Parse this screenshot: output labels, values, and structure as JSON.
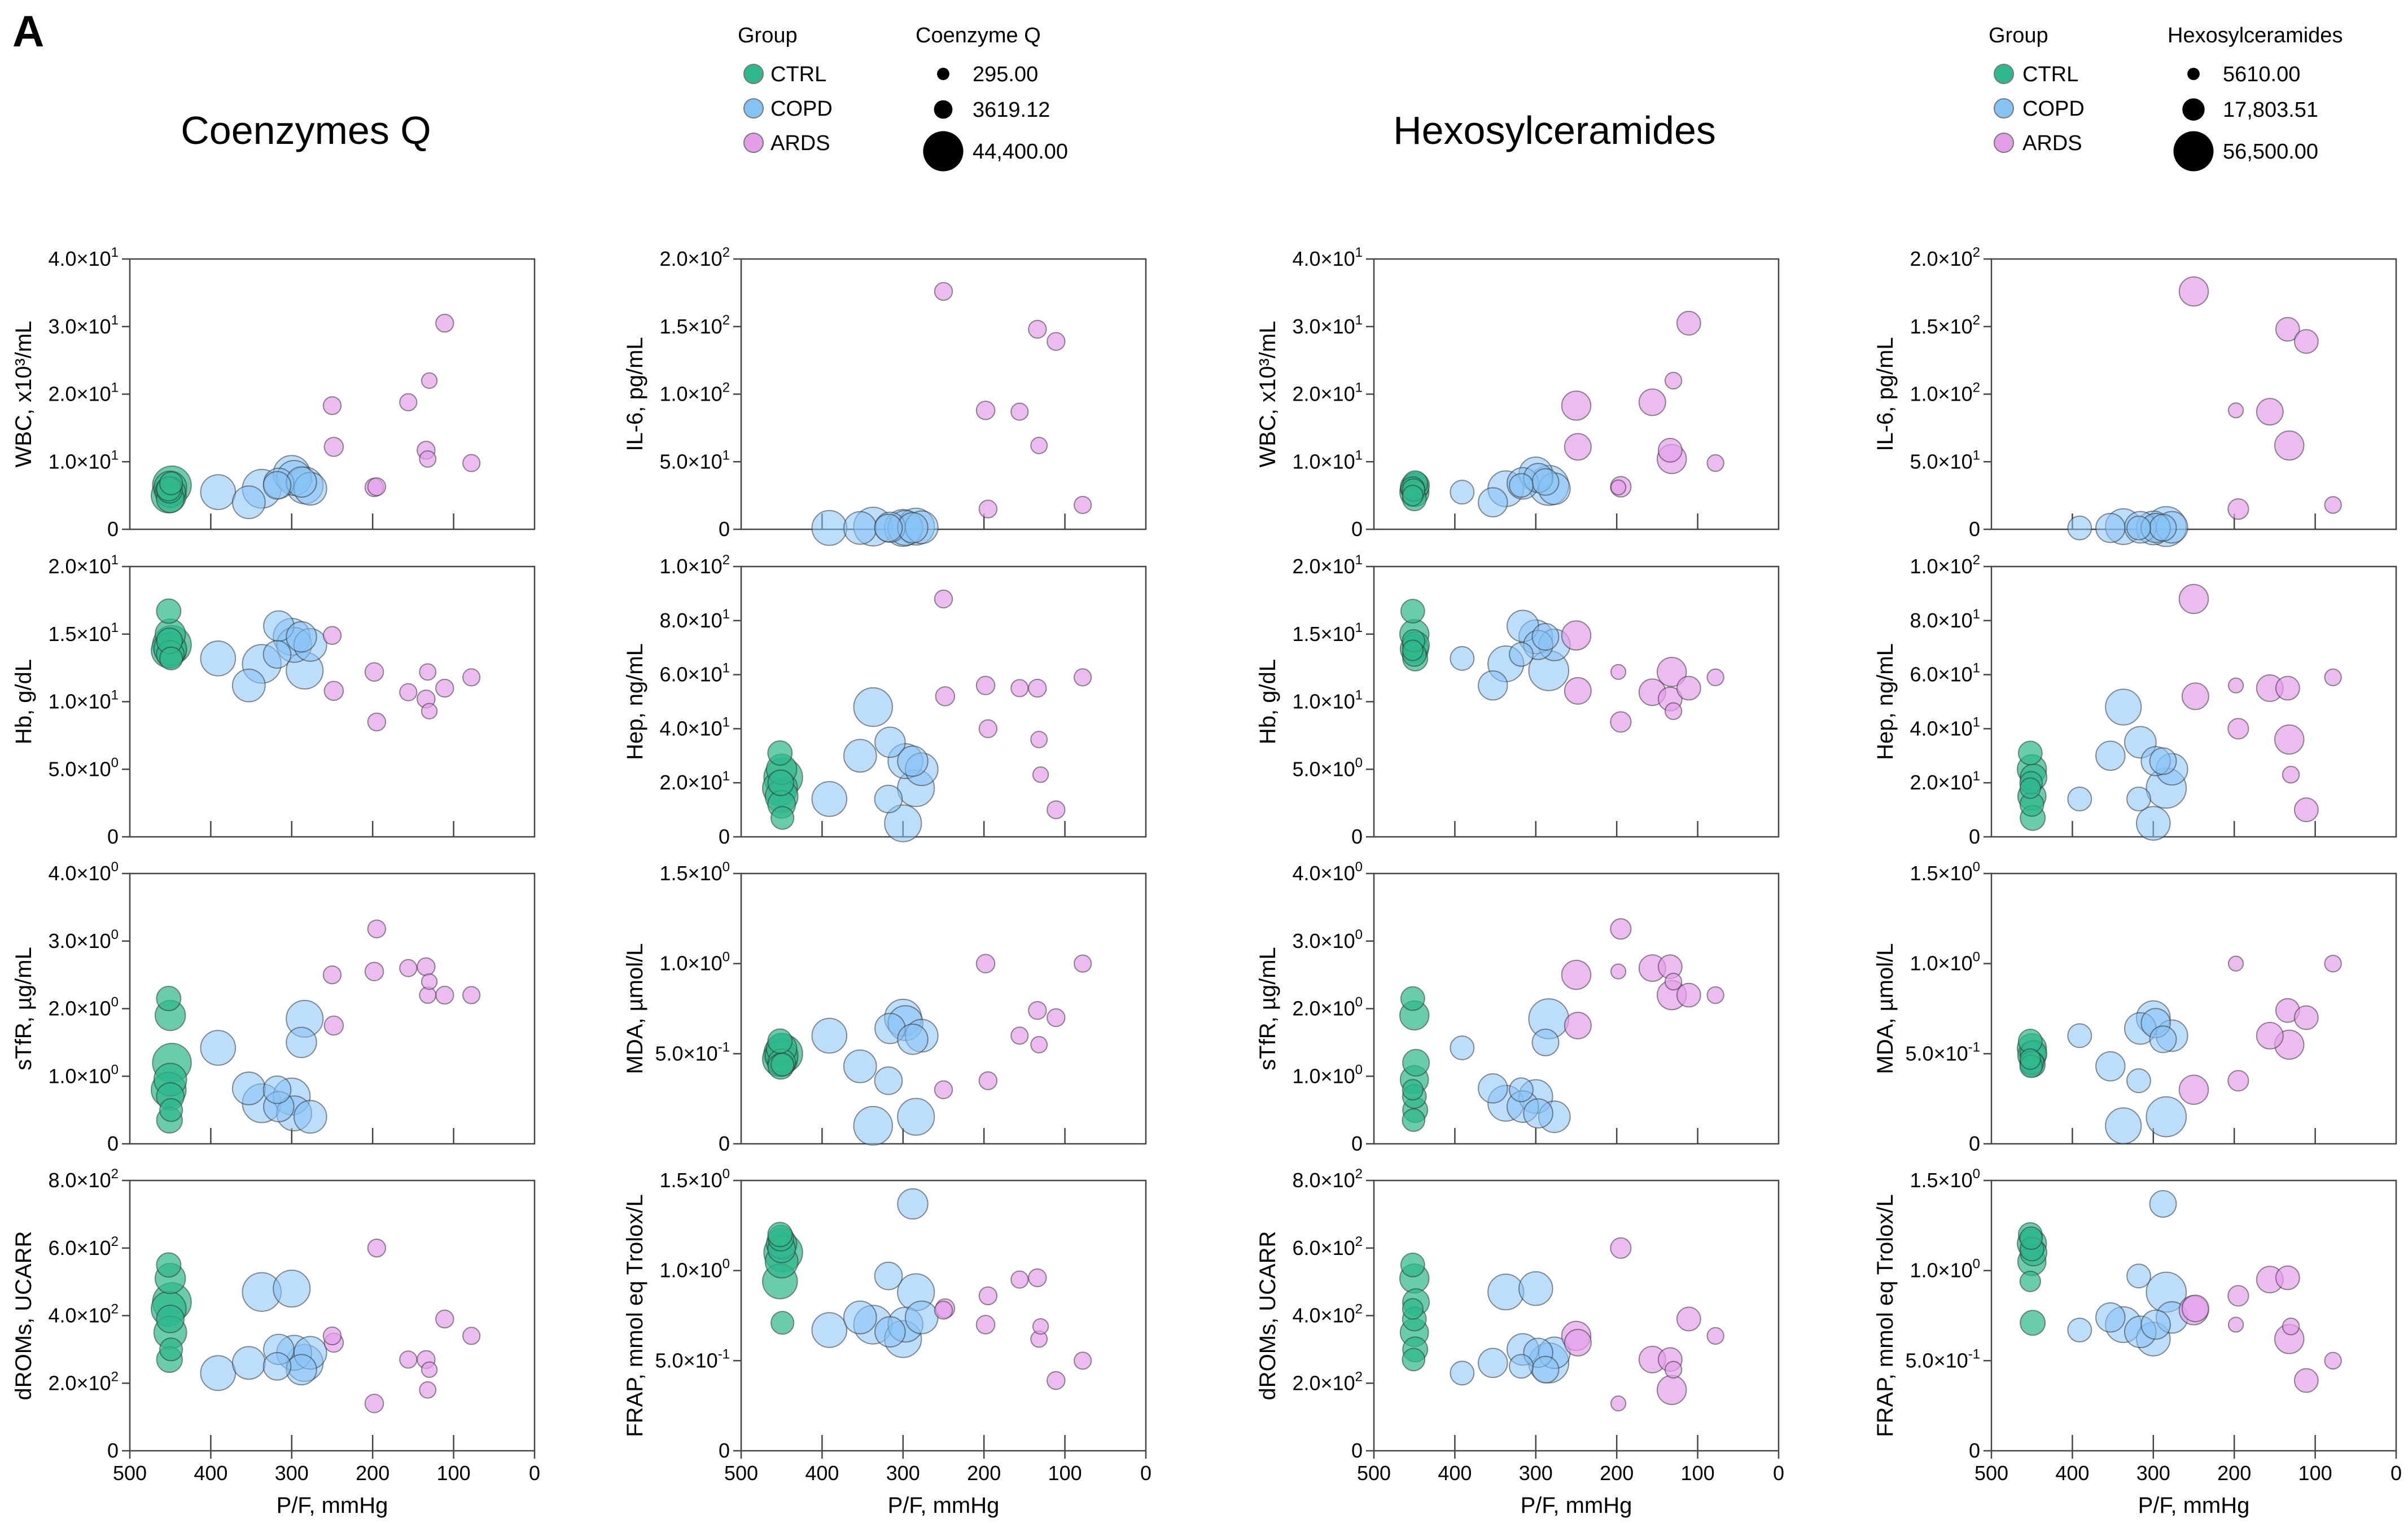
{
  "panel_label": "A",
  "titles": {
    "coq": "Coenzymes Q",
    "hex": "Hexosylceramides"
  },
  "legends": {
    "group_title": "Group",
    "groups": [
      {
        "key": "CTRL",
        "label": "CTRL",
        "color": "#2fb88e"
      },
      {
        "key": "COPD",
        "label": "COPD",
        "color": "#86c3f5"
      },
      {
        "key": "ARDS",
        "label": "ARDS",
        "color": "#e49ee9"
      }
    ],
    "coq": {
      "title": "Coenzyme Q",
      "values": [
        295.0,
        3619.12,
        44400.0
      ],
      "labels": [
        "295.00",
        "3619.12",
        "44,400.00"
      ]
    },
    "hex": {
      "title": "Hexosylceramides",
      "values": [
        5610.0,
        17803.51,
        56500.0
      ],
      "labels": [
        "5610.00",
        "17,803.51",
        "56,500.00"
      ]
    }
  },
  "chart_data": {
    "type": "scatter",
    "subtype": "bubble",
    "xlabel": "P/F, mmHg",
    "xlim": [
      500,
      0
    ],
    "xticks": [
      500,
      400,
      300,
      200,
      100,
      0
    ],
    "grid": false,
    "variables": {
      "wbc": {
        "ylabel": "WBC, x10³/mL",
        "ylim": [
          0,
          40
        ],
        "ticks": [
          [
            0,
            "0",
            ""
          ],
          [
            10,
            "1.0×10",
            "1"
          ],
          [
            20,
            "2.0×10",
            "1"
          ],
          [
            30,
            "3.0×10",
            "1"
          ],
          [
            40,
            "4.0×10",
            "1"
          ]
        ]
      },
      "il6": {
        "ylabel": "IL-6, pg/mL",
        "ylim": [
          0,
          200
        ],
        "ticks": [
          [
            0,
            "0",
            ""
          ],
          [
            50,
            "5.0×10",
            "1"
          ],
          [
            100,
            "1.0×10",
            "2"
          ],
          [
            150,
            "1.5×10",
            "2"
          ],
          [
            200,
            "2.0×10",
            "2"
          ]
        ]
      },
      "hb": {
        "ylabel": "Hb, g/dL",
        "ylim": [
          0,
          20
        ],
        "ticks": [
          [
            0,
            "0",
            ""
          ],
          [
            5,
            "5.0×10",
            "0"
          ],
          [
            10,
            "1.0×10",
            "1"
          ],
          [
            15,
            "1.5×10",
            "1"
          ],
          [
            20,
            "2.0×10",
            "1"
          ]
        ]
      },
      "hep": {
        "ylabel": "Hep, ng/mL",
        "ylim": [
          0,
          100
        ],
        "ticks": [
          [
            0,
            "0",
            ""
          ],
          [
            20,
            "2.0×10",
            "1"
          ],
          [
            40,
            "4.0×10",
            "1"
          ],
          [
            60,
            "6.0×10",
            "1"
          ],
          [
            80,
            "8.0×10",
            "1"
          ],
          [
            100,
            "1.0×10",
            "2"
          ]
        ]
      },
      "stfr": {
        "ylabel": "sTfR, µg/mL",
        "ylim": [
          0,
          4
        ],
        "ticks": [
          [
            0,
            "0",
            ""
          ],
          [
            1,
            "1.0×10",
            "0"
          ],
          [
            2,
            "2.0×10",
            "0"
          ],
          [
            3,
            "3.0×10",
            "0"
          ],
          [
            4,
            "4.0×10",
            "0"
          ]
        ]
      },
      "mda": {
        "ylabel": "MDA, µmol/L",
        "ylim": [
          0,
          1.5
        ],
        "ticks": [
          [
            0,
            "0",
            ""
          ],
          [
            0.5,
            "5.0×10",
            "-1"
          ],
          [
            1.0,
            "1.0×10",
            "0"
          ],
          [
            1.5,
            "1.5×10",
            "0"
          ]
        ]
      },
      "droms": {
        "ylabel": "dROMs, UCARR",
        "ylim": [
          0,
          800
        ],
        "ticks": [
          [
            0,
            "0",
            ""
          ],
          [
            200,
            "2.0×10",
            "2"
          ],
          [
            400,
            "4.0×10",
            "2"
          ],
          [
            600,
            "6.0×10",
            "2"
          ],
          [
            800,
            "8.0×10",
            "2"
          ]
        ]
      },
      "frap": {
        "ylabel": "FRAP, mmol eq Trolox/L",
        "ylim": [
          0,
          1.5
        ],
        "ticks": [
          [
            0,
            "0",
            ""
          ],
          [
            0.5,
            "5.0×10",
            "-1"
          ],
          [
            1.0,
            "1.0×10",
            "0"
          ],
          [
            1.5,
            "1.5×10",
            "0"
          ]
        ]
      }
    },
    "patients": [
      {
        "g": "CTRL",
        "pf": 452,
        "coq": 10000,
        "hex": 20000,
        "wbc": 6.0,
        "il6": null,
        "hb": 16.7,
        "hep": 31,
        "stfr": 2.15,
        "mda": 0.57,
        "droms": 550,
        "frap": 1.2
      },
      {
        "g": "CTRL",
        "pf": 450,
        "coq": 20000,
        "hex": 30000,
        "wbc": 5.5,
        "il6": null,
        "hb": 15.0,
        "hep": 25,
        "stfr": 1.9,
        "mda": 0.53,
        "droms": 510,
        "frap": 1.15
      },
      {
        "g": "CTRL",
        "pf": 448,
        "coq": 40000,
        "hex": 25000,
        "wbc": 6.5,
        "il6": null,
        "hb": 14.2,
        "hep": 22,
        "stfr": 1.2,
        "mda": 0.5,
        "droms": 440,
        "frap": 1.1
      },
      {
        "g": "CTRL",
        "pf": 452,
        "coq": 30000,
        "hex": 15000,
        "wbc": 5.0,
        "il6": null,
        "hb": 13.8,
        "hep": 18,
        "stfr": 0.8,
        "mda": 0.47,
        "droms": 420,
        "frap": 0.94
      },
      {
        "g": "CTRL",
        "pf": 450,
        "coq": 15000,
        "hex": 20000,
        "wbc": 4.5,
        "il6": null,
        "hb": 13.5,
        "hep": 12,
        "stfr": 0.7,
        "mda": 0.45,
        "droms": 390,
        "frap": 1.12
      },
      {
        "g": "CTRL",
        "pf": 449,
        "coq": 8000,
        "hex": 22000,
        "wbc": 6.8,
        "il6": null,
        "hb": 13.2,
        "hep": 7,
        "stfr": 0.5,
        "mda": 0.44,
        "droms": 300,
        "frap": 0.71
      },
      {
        "g": "CTRL",
        "pf": 451,
        "coq": 12000,
        "hex": 18000,
        "wbc": 5.8,
        "il6": null,
        "hb": 14.5,
        "hep": 20,
        "stfr": 0.35,
        "mda": 0.43,
        "droms": 270,
        "frap": 1.18
      },
      {
        "g": "CTRL",
        "pf": 450,
        "coq": 25000,
        "hex": 28000,
        "wbc": 6.2,
        "il6": null,
        "hb": 13.9,
        "hep": 15,
        "stfr": 0.95,
        "mda": 0.49,
        "droms": 350,
        "frap": 1.05
      },
      {
        "g": "COPD",
        "pf": 391,
        "coq": 30000,
        "hex": 20000,
        "wbc": 5.5,
        "il6": 1,
        "hb": 13.2,
        "hep": 14,
        "stfr": 1.42,
        "mda": 0.6,
        "droms": 230,
        "frap": 0.67
      },
      {
        "g": "COPD",
        "pf": 353,
        "coq": 25000,
        "hex": 30000,
        "wbc": 4.0,
        "il6": 1,
        "hb": 11.2,
        "hep": 30,
        "stfr": 0.82,
        "mda": 0.43,
        "droms": 260,
        "frap": 0.74
      },
      {
        "g": "COPD",
        "pf": 337,
        "coq": 40000,
        "hex": 45000,
        "wbc": 6.0,
        "il6": 2,
        "hb": 12.8,
        "hep": 48,
        "stfr": 0.6,
        "mda": 0.1,
        "droms": 470,
        "frap": 0.7
      },
      {
        "g": "COPD",
        "pf": 318,
        "coq": 15000,
        "hex": 20000,
        "wbc": 6.5,
        "il6": 1,
        "hb": 13.5,
        "hep": 14,
        "stfr": 0.8,
        "mda": 0.35,
        "droms": 250,
        "frap": 0.97
      },
      {
        "g": "COPD",
        "pf": 316,
        "coq": 20000,
        "hex": 35000,
        "wbc": 6.8,
        "il6": 1.5,
        "hb": 15.6,
        "hep": 35,
        "stfr": 0.55,
        "mda": 0.64,
        "droms": 300,
        "frap": 0.66
      },
      {
        "g": "COPD",
        "pf": 300,
        "coq": 35000,
        "hex": 40000,
        "wbc": 8.2,
        "il6": 1,
        "hb": 14.8,
        "hep": 5,
        "stfr": 0.7,
        "mda": 0.7,
        "droms": 480,
        "frap": 0.62
      },
      {
        "g": "COPD",
        "pf": 297,
        "coq": 30000,
        "hex": 30000,
        "wbc": 7.6,
        "il6": 1,
        "hb": 14.2,
        "hep": 28,
        "stfr": 0.45,
        "mda": 0.67,
        "droms": 290,
        "frap": 0.7
      },
      {
        "g": "COPD",
        "pf": 288,
        "coq": 20000,
        "hex": 25000,
        "wbc": 7.0,
        "il6": 1.2,
        "hb": 14.8,
        "hep": 28,
        "stfr": 1.5,
        "mda": 0.58,
        "droms": 240,
        "frap": 1.37
      },
      {
        "g": "COPD",
        "pf": 284,
        "coq": 35000,
        "hex": 56000,
        "wbc": 6.5,
        "il6": 2,
        "hb": 12.3,
        "hep": 18,
        "stfr": 1.85,
        "mda": 0.15,
        "droms": 260,
        "frap": 0.88
      },
      {
        "g": "COPD",
        "pf": 277,
        "coq": 25000,
        "hex": 35000,
        "wbc": 6.0,
        "il6": 1.5,
        "hb": 14.2,
        "hep": 25,
        "stfr": 0.4,
        "mda": 0.6,
        "droms": 290,
        "frap": 0.74
      },
      {
        "g": "ARDS",
        "pf": 250,
        "coq": 3000,
        "hex": 30000,
        "wbc": 18.3,
        "il6": 176,
        "hb": 14.9,
        "hep": 88,
        "stfr": 2.5,
        "mda": 0.3,
        "droms": 340,
        "frap": 0.78
      },
      {
        "g": "ARDS",
        "pf": 248,
        "coq": 4000,
        "hex": 25000,
        "wbc": 12.2,
        "il6": null,
        "hb": 10.8,
        "hep": 52,
        "stfr": 1.75,
        "mda": null,
        "droms": 320,
        "frap": 0.79
      },
      {
        "g": "ARDS",
        "pf": 198,
        "coq": 3500,
        "hex": 8000,
        "wbc": 6.2,
        "il6": 88,
        "hb": 12.2,
        "hep": 56,
        "stfr": 2.55,
        "mda": 1.0,
        "droms": 140,
        "frap": 0.7
      },
      {
        "g": "ARDS",
        "pf": 195,
        "coq": 3000,
        "hex": 15000,
        "wbc": 6.3,
        "il6": 15,
        "hb": 8.5,
        "hep": 40,
        "stfr": 3.18,
        "mda": 0.35,
        "droms": 600,
        "frap": 0.86
      },
      {
        "g": "ARDS",
        "pf": 156,
        "coq": 2500,
        "hex": 25000,
        "wbc": 18.8,
        "il6": 87,
        "hb": 10.7,
        "hep": 55,
        "stfr": 2.6,
        "mda": 0.6,
        "droms": 270,
        "frap": 0.95
      },
      {
        "g": "ARDS",
        "pf": 134,
        "coq": 3000,
        "hex": 20000,
        "wbc": 11.7,
        "il6": 148,
        "hb": 10.2,
        "hep": 55,
        "stfr": 2.62,
        "mda": 0.74,
        "droms": 270,
        "frap": 0.96
      },
      {
        "g": "ARDS",
        "pf": 132,
        "coq": 2000,
        "hex": 30000,
        "wbc": 10.4,
        "il6": 62,
        "hb": 12.2,
        "hep": 36,
        "stfr": 2.2,
        "mda": 0.55,
        "droms": 180,
        "frap": 0.62
      },
      {
        "g": "ARDS",
        "pf": 130,
        "coq": 1500,
        "hex": 10000,
        "wbc": 22.0,
        "il6": null,
        "hb": 9.3,
        "hep": 23,
        "stfr": 2.4,
        "mda": null,
        "droms": 240,
        "frap": 0.69
      },
      {
        "g": "ARDS",
        "pf": 111,
        "coq": 3000,
        "hex": 20000,
        "wbc": 30.5,
        "il6": 139,
        "hb": 11.0,
        "hep": 10,
        "stfr": 2.2,
        "mda": 0.7,
        "droms": 390,
        "frap": 0.39
      },
      {
        "g": "ARDS",
        "pf": 78,
        "coq": 2500,
        "hex": 10000,
        "wbc": 9.8,
        "il6": 18,
        "hb": 11.8,
        "hep": 59,
        "stfr": 2.2,
        "mda": 1.0,
        "droms": 340,
        "frap": 0.5
      }
    ]
  }
}
